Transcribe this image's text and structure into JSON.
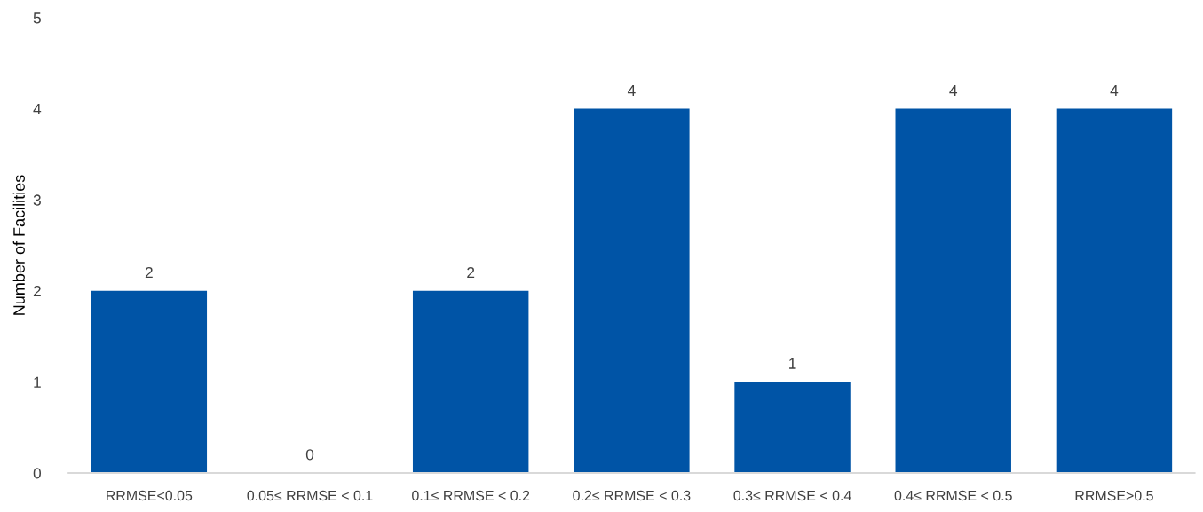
{
  "chart_data": {
    "type": "bar",
    "ylabel": "Number of Facilities",
    "categories": [
      "RRMSE<0.05",
      "0.05≤ RRMSE < 0.1",
      "0.1≤ RRMSE < 0.2",
      "0.2≤ RRMSE < 0.3",
      "0.3≤ RRMSE < 0.4",
      "0.4≤ RRMSE < 0.5",
      "RRMSE>0.5"
    ],
    "values": [
      2,
      0,
      2,
      4,
      1,
      4,
      4
    ],
    "color": "#0054a6",
    "ylim": [
      0,
      5
    ],
    "yticks": [
      0,
      1,
      2,
      3,
      4,
      5
    ],
    "data_labels": true
  }
}
